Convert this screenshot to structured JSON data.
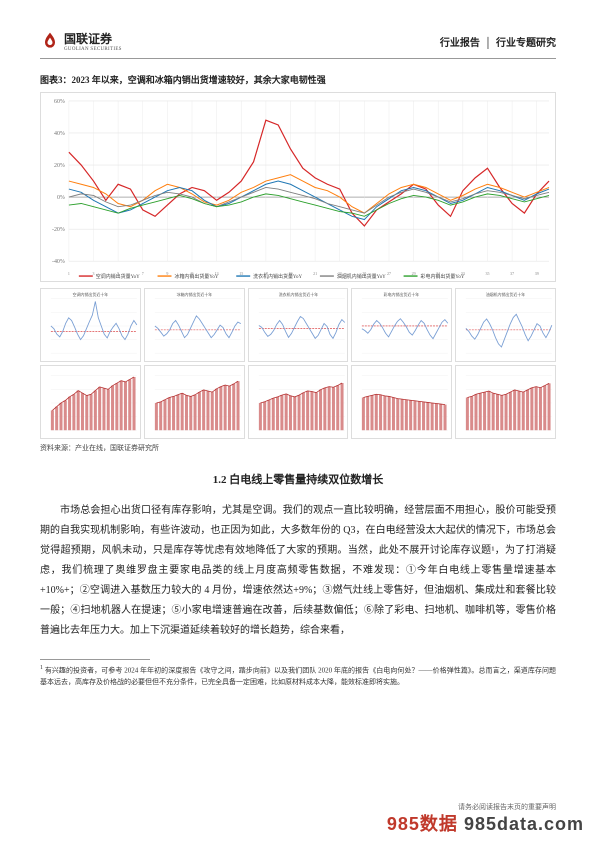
{
  "header": {
    "brand_cn": "国联证券",
    "brand_en": "GUOLIAN SECURITIES",
    "right_a": "行业报告",
    "right_sep": "│",
    "right_b": "行业专题研究"
  },
  "logo_color": "#b02418",
  "figure": {
    "title": "图表3：2023 年以来，空调和冰箱内销出货增速较好，其余大家电韧性强",
    "source": "资料来源：产业在线，国联证券研究所"
  },
  "main_chart": {
    "ylim": [
      -40,
      60
    ],
    "yticks": [
      -40,
      -20,
      0,
      20,
      40,
      60
    ],
    "grid_color": "#e6e6e6",
    "axis_color": "#bbbbbb",
    "bg": "#ffffff",
    "x_count": 40,
    "series": [
      {
        "name": "空调内销出货量YoY",
        "color": "#d62728",
        "width": 1.2,
        "data": [
          28,
          20,
          10,
          -2,
          8,
          5,
          -8,
          -12,
          -5,
          2,
          6,
          4,
          -2,
          3,
          10,
          22,
          48,
          45,
          30,
          18,
          12,
          8,
          5,
          -10,
          -18,
          -8,
          -3,
          2,
          8,
          5,
          -5,
          -12,
          4,
          12,
          18,
          6,
          -4,
          -10,
          2,
          10
        ]
      },
      {
        "name": "冰箱内销出货量YoY",
        "color": "#ff7f0e",
        "width": 1.0,
        "data": [
          10,
          8,
          6,
          2,
          -4,
          -6,
          -2,
          4,
          8,
          6,
          2,
          -3,
          -5,
          -2,
          3,
          6,
          10,
          12,
          14,
          10,
          6,
          4,
          0,
          -6,
          -10,
          -4,
          2,
          6,
          8,
          6,
          2,
          -2,
          1,
          5,
          8,
          6,
          3,
          0,
          3,
          6
        ]
      },
      {
        "name": "洗衣机内销出货量YoY",
        "color": "#1f77b4",
        "width": 1.0,
        "data": [
          5,
          3,
          -2,
          -6,
          -10,
          -8,
          -4,
          0,
          4,
          6,
          4,
          -2,
          -6,
          -4,
          0,
          4,
          8,
          10,
          8,
          4,
          0,
          -4,
          -8,
          -12,
          -14,
          -6,
          -1,
          4,
          6,
          4,
          0,
          -4,
          -2,
          2,
          6,
          4,
          1,
          -2,
          2,
          5
        ]
      },
      {
        "name": "油烟机内销出货量YoY",
        "color": "#7f7f7f",
        "width": 0.9,
        "data": [
          0,
          2,
          1,
          -3,
          -6,
          -5,
          -2,
          1,
          3,
          2,
          0,
          -4,
          -6,
          -3,
          0,
          3,
          6,
          5,
          3,
          1,
          -1,
          -4,
          -6,
          -8,
          -10,
          -5,
          0,
          3,
          5,
          3,
          0,
          -3,
          -1,
          2,
          4,
          3,
          1,
          -1,
          1,
          3
        ]
      },
      {
        "name": "彩电内销出货量YoY",
        "color": "#2ca02c",
        "width": 0.9,
        "data": [
          -5,
          -4,
          -6,
          -8,
          -10,
          -7,
          -5,
          -3,
          -1,
          1,
          -1,
          -4,
          -6,
          -5,
          -3,
          0,
          2,
          1,
          -1,
          -3,
          -5,
          -7,
          -9,
          -10,
          -12,
          -8,
          -4,
          -1,
          1,
          0,
          -2,
          -5,
          -3,
          0,
          2,
          1,
          -1,
          -3,
          -1,
          1
        ]
      }
    ]
  },
  "small_charts": [
    {
      "type": "line",
      "title": "空调内销出货近十年",
      "line_color": "#7a9fd4",
      "ref_color": "#d62728",
      "ylim": [
        -40,
        60
      ],
      "ref": 0,
      "data": [
        10,
        5,
        -5,
        -10,
        0,
        15,
        25,
        20,
        8,
        -5,
        -15,
        -8,
        5,
        18,
        30,
        55,
        25,
        10,
        -5,
        -12,
        0,
        8,
        15,
        5,
        -8,
        -15,
        -5,
        10,
        20,
        12
      ]
    },
    {
      "type": "line",
      "title": "冰箱内销出货近十年",
      "line_color": "#7a9fd4",
      "ref_color": "#d62728",
      "ylim": [
        -30,
        40
      ],
      "ref": 0,
      "data": [
        5,
        2,
        -3,
        -8,
        -5,
        0,
        8,
        12,
        6,
        -2,
        -10,
        -6,
        2,
        10,
        18,
        14,
        8,
        2,
        -4,
        -10,
        -6,
        0,
        6,
        3,
        -5,
        -10,
        -3,
        5,
        10,
        8
      ]
    },
    {
      "type": "line",
      "title": "洗衣机内销出货近十年",
      "line_color": "#7a9fd4",
      "ref_color": "#d62728",
      "ylim": [
        -25,
        30
      ],
      "ref": 0,
      "data": [
        3,
        1,
        -4,
        -8,
        -6,
        -2,
        4,
        8,
        4,
        -3,
        -9,
        -5,
        1,
        7,
        12,
        10,
        5,
        0,
        -5,
        -10,
        -7,
        -1,
        5,
        2,
        -6,
        -10,
        -4,
        4,
        9,
        6
      ]
    },
    {
      "type": "line",
      "title": "彩电内销出货近十年",
      "line_color": "#7a9fd4",
      "ref_color": "#d62728",
      "ylim": [
        -30,
        30
      ],
      "ref": 0,
      "data": [
        -3,
        -5,
        -8,
        -4,
        2,
        6,
        3,
        -2,
        -8,
        -12,
        -6,
        0,
        5,
        8,
        4,
        -1,
        -7,
        -10,
        -5,
        1,
        6,
        3,
        -4,
        -10,
        -14,
        -8,
        -2,
        4,
        7,
        3
      ]
    },
    {
      "type": "line",
      "title": "油烟机内销出货近十年",
      "line_color": "#7a9fd4",
      "ref_color": "#d62728",
      "ylim": [
        -30,
        40
      ],
      "ref": 0,
      "data": [
        2,
        -2,
        -8,
        -12,
        -6,
        2,
        10,
        14,
        8,
        0,
        -10,
        -18,
        -22,
        -12,
        -2,
        8,
        16,
        20,
        12,
        4,
        -6,
        -14,
        -8,
        0,
        8,
        5,
        -4,
        -10,
        -3,
        6
      ]
    },
    {
      "type": "bar",
      "title": "",
      "bar_color": "#d98b8b",
      "line_color": "#b53030",
      "ylim": [
        0,
        2200
      ],
      "data": [
        800,
        950,
        1100,
        1200,
        1350,
        1450,
        1600,
        1500,
        1400,
        1450,
        1600,
        1750,
        1700,
        1650,
        1800,
        1900,
        2000,
        1950,
        2050,
        2150
      ]
    },
    {
      "type": "bar",
      "title": "",
      "bar_color": "#d98b8b",
      "line_color": "#b53030",
      "ylim": [
        0,
        1000
      ],
      "data": [
        500,
        520,
        560,
        600,
        620,
        650,
        680,
        640,
        620,
        650,
        700,
        740,
        720,
        700,
        760,
        800,
        830,
        810,
        850,
        900
      ]
    },
    {
      "type": "bar",
      "title": "",
      "bar_color": "#d98b8b",
      "line_color": "#b53030",
      "ylim": [
        0,
        900
      ],
      "data": [
        450,
        470,
        500,
        530,
        550,
        580,
        600,
        570,
        550,
        580,
        620,
        650,
        640,
        620,
        670,
        700,
        720,
        710,
        740,
        780
      ]
    },
    {
      "type": "bar",
      "title": "",
      "bar_color": "#d98b8b",
      "line_color": "#b53030",
      "ylim": [
        0,
        1000
      ],
      "data": [
        600,
        620,
        640,
        660,
        650,
        630,
        620,
        600,
        580,
        570,
        560,
        550,
        540,
        530,
        520,
        510,
        500,
        490,
        480,
        470
      ]
    },
    {
      "type": "bar",
      "title": "",
      "bar_color": "#d98b8b",
      "line_color": "#b53030",
      "ylim": [
        0,
        500
      ],
      "data": [
        300,
        310,
        330,
        340,
        350,
        360,
        340,
        330,
        320,
        330,
        350,
        370,
        360,
        350,
        370,
        390,
        400,
        390,
        410,
        430
      ]
    }
  ],
  "section": {
    "title": "1.2 白电线上零售量持续双位数增长",
    "paragraph": "市场总会担心出货口径有库存影响，尤其是空调。我们的观点一直比较明确，经营层面不用担心，股价可能受预期的自我实现机制影响，有些许波动，也正因为如此，大多数年份的 Q3，在白电经营没太大起伏的情况下，市场总会觉得超预期，风帆未动，只是库存等忧虑有效地降低了大家的预期。当然，此处不展开讨论库存议题¹，为了打消疑虑，我们梳理了奥维罗盘主要家电品类的线上月度高频零售数据，不难发现：①今年白电线上零售量增速基本+10%+；②空调进入基数压力较大的 4 月份，增速依然达+9%；③燃气灶线上零售好，但油烟机、集成灶和套餐比较一般；④扫地机器人在提速；⑤小家电增速普遍在改善，后续基数偏低；⑥除了彩电、扫地机、咖啡机等，零售价格普遍比去年压力大。加上下沉渠道延续着较好的增长趋势，综合来看，"
  },
  "footnote": {
    "marker": "1",
    "text": "有兴趣的投资者，可参考 2024 年年初的深度报告《攻守之间，踏步向前》以及我们团队 2020 年底的报告《白电向何处？——价格弹性篇》。总而言之，渠道库存问题基本远去，高库存及价格战的必要但但不充分条件，已完全具备一定困难，比如原材料成本大降，能效标准即将实施。"
  },
  "footer_small": "请务必阅读报告末页的重要声明",
  "watermark": {
    "a": "985数据",
    "b": " 985data.com"
  }
}
